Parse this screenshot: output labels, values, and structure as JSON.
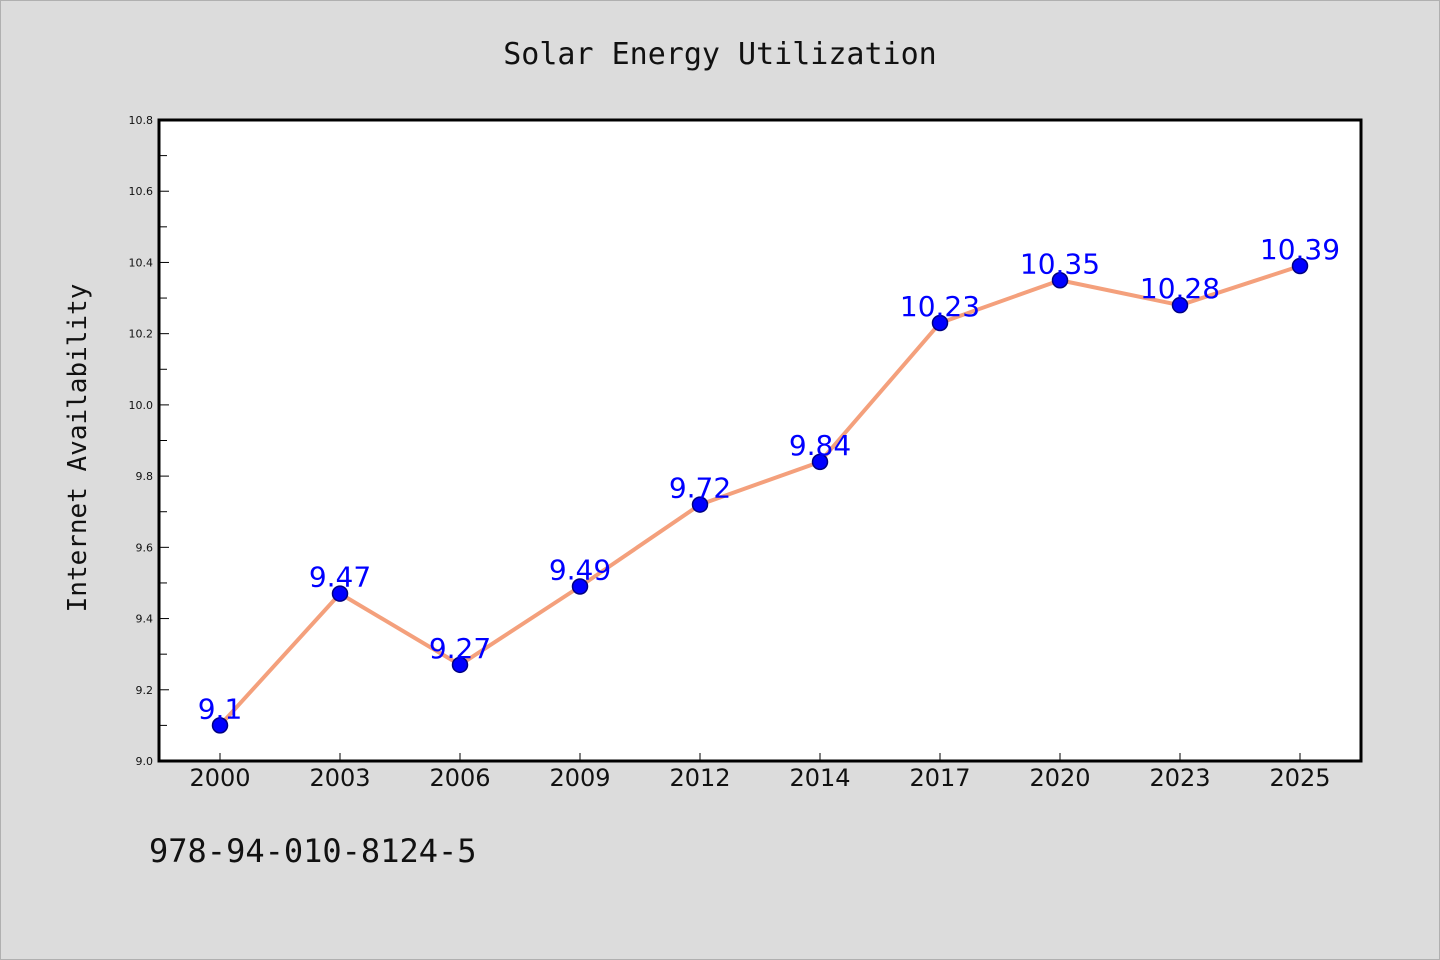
{
  "chart_data": {
    "type": "line",
    "title": "Solar Energy Utilization",
    "xlabel": "",
    "ylabel": "Internet Availability",
    "categories": [
      "2000",
      "2003",
      "2006",
      "2009",
      "2012",
      "2014",
      "2017",
      "2020",
      "2023",
      "2025"
    ],
    "series": [
      {
        "values": [
          9.1,
          9.47,
          9.27,
          9.49,
          9.72,
          9.84,
          10.23,
          10.35,
          10.28,
          10.39
        ],
        "data_labels": [
          "9.1",
          "9.47",
          "9.27",
          "9.49",
          "9.72",
          "9.84",
          "10.23",
          "10.35",
          "10.28",
          "10.39"
        ]
      }
    ],
    "ylim": [
      9.0,
      10.8
    ],
    "yticks": [
      "9.0",
      "9.2",
      "9.4",
      "9.6",
      "9.8",
      "10.0",
      "10.2",
      "10.4",
      "10.6",
      "10.8"
    ],
    "grid": false,
    "legend": "none",
    "colors": {
      "line": "#f4a07c",
      "marker": "#0000ff",
      "marker_edge": "#000080",
      "label": "#0000ff",
      "plot_bg": "#ffffff",
      "page_bg": "#dcdcdc"
    }
  },
  "footer": {
    "code": "978-94-010-8124-5"
  }
}
